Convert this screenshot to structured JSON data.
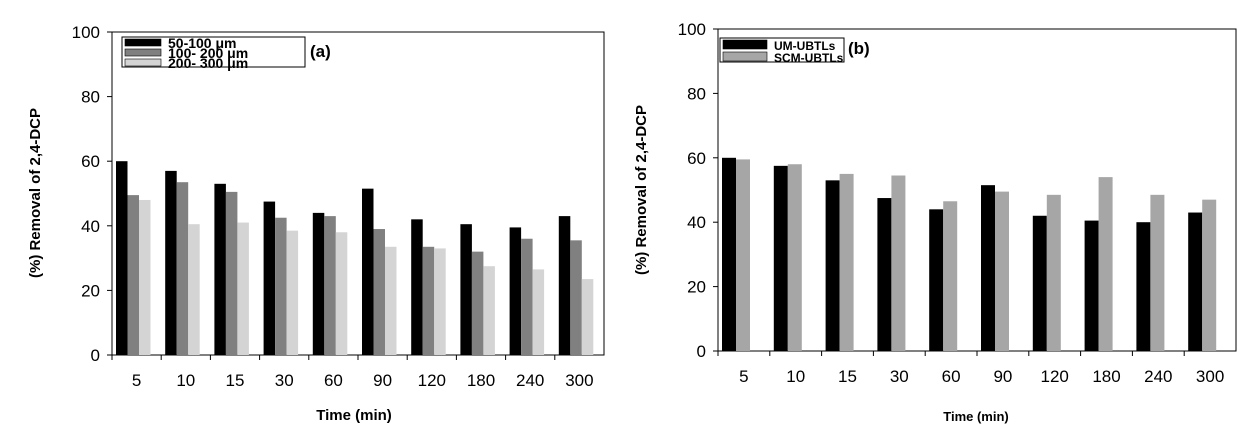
{
  "chart_data": [
    {
      "type": "bar",
      "panel_label": "(a)",
      "xlabel": "Time (min)",
      "ylabel": "(%) Removal of 2,4-DCP",
      "ylim": [
        0,
        100
      ],
      "yticks": [
        "0",
        "20",
        "40",
        "60",
        "80",
        "100"
      ],
      "categories": [
        "5",
        "10",
        "15",
        "30",
        "60",
        "90",
        "120",
        "180",
        "240",
        "300"
      ],
      "legend_position": "top-left",
      "grid": false,
      "series": [
        {
          "name": "50-100 μm",
          "color": "#000000",
          "values": [
            60,
            57,
            53,
            47.5,
            44,
            51.5,
            42,
            40.5,
            39.5,
            43
          ]
        },
        {
          "name": "100- 200 μm",
          "color": "#808080",
          "values": [
            49.5,
            53.5,
            50.5,
            42.5,
            43,
            39,
            33.5,
            32,
            36,
            35.5
          ]
        },
        {
          "name": "200- 300 μm",
          "color": "#d4d4d4",
          "values": [
            48,
            40.5,
            41,
            38.5,
            38,
            33.5,
            33,
            27.5,
            26.5,
            23.5
          ]
        }
      ]
    },
    {
      "type": "bar",
      "panel_label": "(b)",
      "xlabel": "Time (min)",
      "ylabel": "(%) Removal of 2,4-DCP",
      "ylim": [
        0,
        100
      ],
      "yticks": [
        "0",
        "20",
        "40",
        "60",
        "80",
        "100"
      ],
      "categories": [
        "5",
        "10",
        "15",
        "30",
        "60",
        "90",
        "120",
        "180",
        "240",
        "300"
      ],
      "legend_position": "top-left",
      "grid": false,
      "series": [
        {
          "name": "UM-UBTLs",
          "color": "#000000",
          "values": [
            60,
            57.5,
            53,
            47.5,
            44,
            51.5,
            42,
            40.5,
            40,
            43
          ]
        },
        {
          "name": "SCM-UBTLs",
          "color": "#a6a6a6",
          "values": [
            59.5,
            58,
            55,
            54.5,
            46.5,
            49.5,
            48.5,
            54,
            48.5,
            47
          ]
        }
      ]
    }
  ]
}
